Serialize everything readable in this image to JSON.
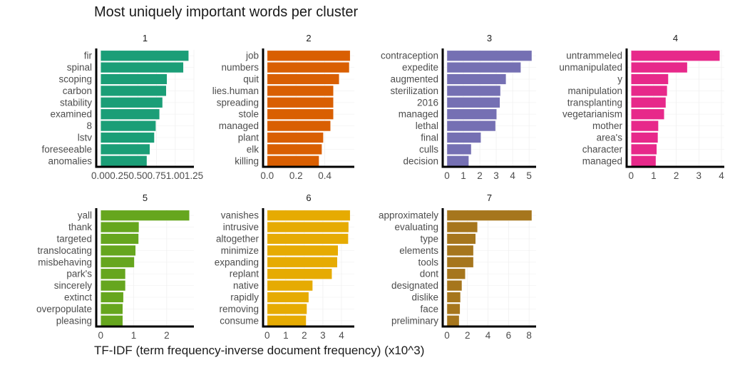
{
  "chart_data": {
    "type": "bar",
    "orientation": "horizontal",
    "title": "Most uniquely important words per cluster",
    "xlabel": "TF-IDF (term frequency-inverse document frequency) (x10^3)",
    "ylabel": "",
    "grid": true,
    "legend": "none",
    "facets": [
      {
        "label": "1",
        "color": "#1b9e77",
        "categories": [
          "fir",
          "spinal",
          "scoping",
          "carbon",
          "stability",
          "examined",
          "8",
          "lstv",
          "foreseeable",
          "anomalies"
        ],
        "values": [
          1.18,
          1.11,
          0.89,
          0.88,
          0.83,
          0.79,
          0.74,
          0.72,
          0.66,
          0.62
        ],
        "ticks": [
          0,
          0.25,
          0.5,
          0.75,
          1,
          1.25
        ],
        "tick_labels": [
          "0.00",
          "0.25",
          "0.50",
          "0.75",
          "1.00",
          "1.25"
        ]
      },
      {
        "label": "2",
        "color": "#d95f02",
        "categories": [
          "job",
          "numbers",
          "quit",
          "lies.human",
          "spreading",
          "stole",
          "managed",
          "plant",
          "elk",
          "killing"
        ],
        "values": [
          0.576,
          0.57,
          0.5,
          0.46,
          0.46,
          0.46,
          0.44,
          0.39,
          0.38,
          0.36
        ],
        "ticks": [
          0,
          0.2,
          0.4
        ],
        "tick_labels": [
          "0.0",
          "0.2",
          "0.4"
        ]
      },
      {
        "label": "3",
        "color": "#7570b3",
        "categories": [
          "contraception",
          "expedite",
          "augmented",
          "sterilization",
          "2016",
          "managed",
          "lethal",
          "final",
          "culls",
          "decision"
        ],
        "values": [
          5.17,
          4.5,
          3.6,
          3.26,
          3.23,
          3.03,
          2.96,
          2.07,
          1.48,
          1.33
        ],
        "ticks": [
          0,
          1,
          2,
          3,
          4,
          5
        ],
        "tick_labels": [
          "0",
          "1",
          "2",
          "3",
          "4",
          "5"
        ]
      },
      {
        "label": "4",
        "color": "#e7298a",
        "categories": [
          "untrammeled",
          "unmanipulated",
          "y",
          "manipulation",
          "transplanting",
          "vegetarianism",
          "mother",
          "area's",
          "character",
          "managed"
        ],
        "values": [
          3.93,
          2.49,
          1.65,
          1.6,
          1.54,
          1.47,
          1.21,
          1.19,
          1.14,
          1.1
        ],
        "ticks": [
          0,
          1,
          2,
          3,
          4
        ],
        "tick_labels": [
          "0",
          "1",
          "2",
          "3",
          "4"
        ]
      },
      {
        "label": "5",
        "color": "#66a61e",
        "categories": [
          "yall",
          "thank",
          "targeted",
          "translocating",
          "misbehaving",
          "park's",
          "sincerely",
          "extinct",
          "overpopulate",
          "pleasing"
        ],
        "values": [
          2.69,
          1.16,
          1.15,
          1.06,
          1.02,
          0.75,
          0.75,
          0.69,
          0.67,
          0.67
        ],
        "ticks": [
          0,
          1,
          2
        ],
        "tick_labels": [
          "0",
          "1",
          "2"
        ]
      },
      {
        "label": "6",
        "color": "#e6ab02",
        "categories": [
          "vanishes",
          "intrusive",
          "altogether",
          "minimize",
          "expanding",
          "replant",
          "native",
          "rapidly",
          "removing",
          "consume"
        ],
        "values": [
          4.47,
          4.39,
          4.37,
          3.82,
          3.78,
          3.49,
          2.45,
          2.24,
          2.14,
          2.1
        ],
        "ticks": [
          0,
          1,
          2,
          3,
          4
        ],
        "tick_labels": [
          "0",
          "1",
          "2",
          "3",
          "4"
        ]
      },
      {
        "label": "7",
        "color": "#a6761d",
        "categories": [
          "approximately",
          "evaluating",
          "type",
          "elements",
          "tools",
          "dont",
          "designated",
          "dislike",
          "face",
          "preliminary"
        ],
        "values": [
          8.27,
          2.98,
          2.8,
          2.58,
          2.58,
          1.79,
          1.46,
          1.32,
          1.28,
          1.19
        ],
        "ticks": [
          0,
          2,
          4,
          6,
          8
        ],
        "tick_labels": [
          "0",
          "2",
          "4",
          "6",
          "8"
        ]
      }
    ]
  }
}
